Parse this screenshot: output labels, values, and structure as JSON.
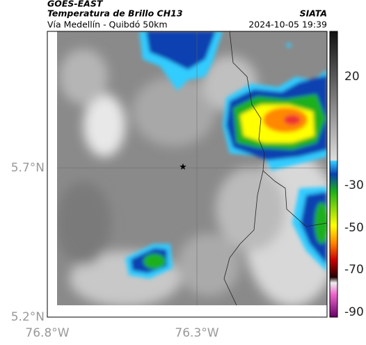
{
  "header": {
    "source": "GOES-EAST",
    "title": "Temperatura de Brillo CH13",
    "org": "SIATA",
    "route": "Vía Medellín - Quibdó 50km",
    "timestamp": "2024-10-05 19:39"
  },
  "map": {
    "lat_labels": [
      "5.7°N",
      "5.2°N"
    ],
    "lon_labels": [
      "76.8°W",
      "76.3°W"
    ]
  },
  "colorbar": {
    "tick_labels": [
      "20",
      "-30",
      "-50",
      "-70",
      "-90"
    ]
  }
}
